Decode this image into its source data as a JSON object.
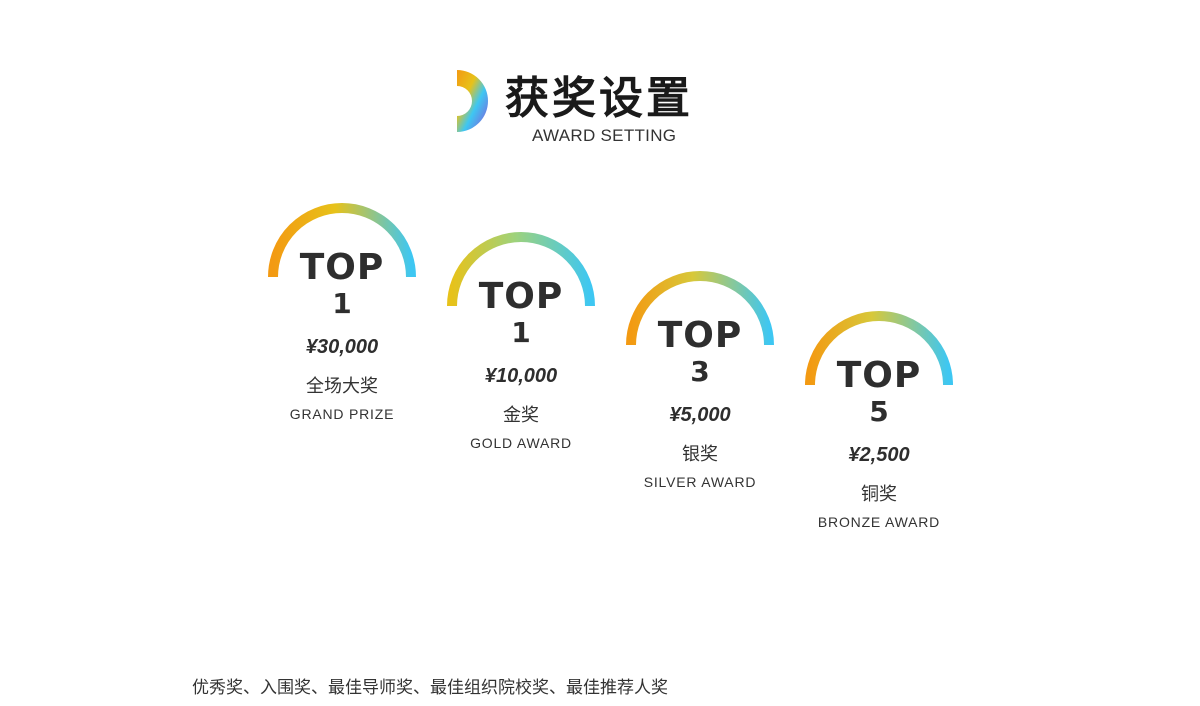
{
  "header": {
    "title_cn": "获奖设置",
    "title_en": "AWARD SETTING",
    "logo_icon": "d-shape-gradient-icon"
  },
  "awards": [
    {
      "top_label": "TOP",
      "rank": "1",
      "amount": "¥30,000",
      "name_cn": "全场大奖",
      "name_en": "GRAND PRIZE"
    },
    {
      "top_label": "TOP",
      "rank": "1",
      "amount": "¥10,000",
      "name_cn": "金奖",
      "name_en": "GOLD AWARD"
    },
    {
      "top_label": "TOP",
      "rank": "3",
      "amount": "¥5,000",
      "name_cn": "银奖",
      "name_en": "SILVER AWARD"
    },
    {
      "top_label": "TOP",
      "rank": "5",
      "amount": "¥2,500",
      "name_cn": "铜奖",
      "name_en": "BRONZE AWARD"
    }
  ],
  "footer": {
    "other_awards": "优秀奖、入围奖、最佳导师奖、最佳组织院校奖、最佳推荐人奖"
  },
  "colors": {
    "orange": "#f39a12",
    "yellow": "#e7c21a",
    "cyan": "#3ec7f2",
    "purple": "#b98ae6",
    "text": "#2e2e2e"
  }
}
